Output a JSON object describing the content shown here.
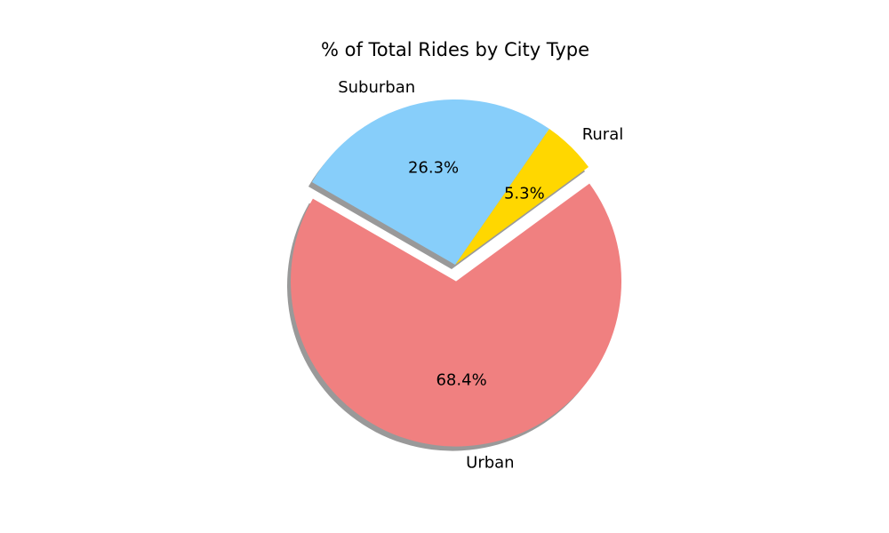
{
  "chart_data": {
    "type": "pie",
    "title": "% of Total Rides by City Type",
    "categories": [
      "Urban",
      "Rural",
      "Suburban"
    ],
    "values": [
      68.4,
      5.3,
      26.3
    ],
    "percent_labels": [
      "68.4%",
      "5.3%",
      "26.3%"
    ],
    "colors": [
      "#f08080",
      "#ffd700",
      "#87cefa"
    ],
    "explode": [
      0.1,
      0,
      0
    ],
    "shadow": true,
    "start_angle_deg": 150,
    "legend": "none"
  }
}
